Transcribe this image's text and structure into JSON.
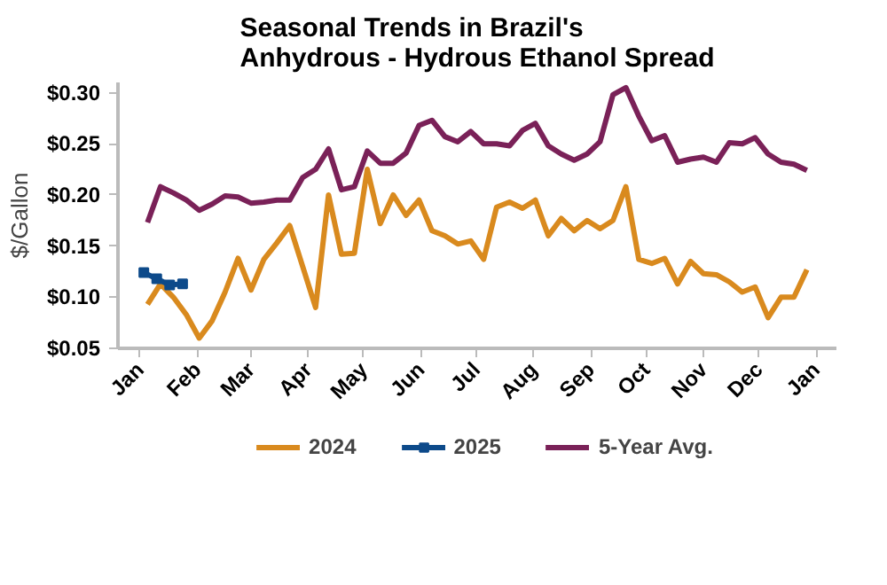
{
  "chart_data": {
    "type": "line",
    "title": "Seasonal Trends in Brazil's\nAnhydrous - Hydrous Ethanol Spread",
    "ylabel": "$/Gallon",
    "x": [
      "2024-01-05",
      "2024-01-12",
      "2024-01-19",
      "2024-01-26",
      "2024-02-02",
      "2024-02-09",
      "2024-02-16",
      "2024-02-23",
      "2024-03-01",
      "2024-03-08",
      "2024-03-15",
      "2024-03-22",
      "2024-03-29",
      "2024-04-05",
      "2024-04-12",
      "2024-04-19",
      "2024-04-26",
      "2024-05-03",
      "2024-05-10",
      "2024-05-17",
      "2024-05-24",
      "2024-05-31",
      "2024-06-07",
      "2024-06-14",
      "2024-06-21",
      "2024-06-28",
      "2024-07-05",
      "2024-07-12",
      "2024-07-19",
      "2024-07-26",
      "2024-08-02",
      "2024-08-09",
      "2024-08-16",
      "2024-08-23",
      "2024-08-30",
      "2024-09-06",
      "2024-09-13",
      "2024-09-20",
      "2024-09-27",
      "2024-10-04",
      "2024-10-11",
      "2024-10-18",
      "2024-10-25",
      "2024-11-01",
      "2024-11-08",
      "2024-11-15",
      "2024-11-22",
      "2024-11-29",
      "2024-12-06",
      "2024-12-13",
      "2024-12-20",
      "2024-12-27"
    ],
    "series": [
      {
        "name": "2024",
        "color": "#d98a1e",
        "values": [
          0.093,
          0.113,
          0.1,
          0.083,
          0.06,
          0.077,
          0.105,
          0.138,
          0.107,
          0.137,
          0.153,
          0.17,
          0.13,
          0.09,
          0.2,
          0.142,
          0.143,
          0.225,
          0.172,
          0.2,
          0.18,
          0.195,
          0.165,
          0.16,
          0.152,
          0.155,
          0.137,
          0.188,
          0.193,
          0.187,
          0.195,
          0.16,
          0.177,
          0.165,
          0.175,
          0.167,
          0.175,
          0.208,
          0.137,
          0.133,
          0.138,
          0.113,
          0.135,
          0.123,
          0.122,
          0.115,
          0.105,
          0.11,
          0.08,
          0.1,
          0.1,
          0.127
        ]
      },
      {
        "name": "2025",
        "color": "#0d4a8a",
        "marker": "square",
        "x": [
          "2024-01-03",
          "2024-01-10",
          "2024-01-17",
          "2024-01-24"
        ],
        "values": [
          0.124,
          0.118,
          0.112,
          0.113
        ]
      },
      {
        "name": "5-Year Avg.",
        "color": "#7a2158",
        "values": [
          0.173,
          0.208,
          0.202,
          0.195,
          0.185,
          0.191,
          0.199,
          0.198,
          0.192,
          0.193,
          0.195,
          0.195,
          0.217,
          0.225,
          0.245,
          0.205,
          0.208,
          0.243,
          0.231,
          0.231,
          0.241,
          0.268,
          0.273,
          0.257,
          0.252,
          0.262,
          0.25,
          0.25,
          0.248,
          0.263,
          0.27,
          0.248,
          0.24,
          0.234,
          0.24,
          0.252,
          0.298,
          0.305,
          0.277,
          0.253,
          0.258,
          0.232,
          0.235,
          0.237,
          0.232,
          0.251,
          0.25,
          0.256,
          0.24,
          0.232,
          0.23,
          0.224
        ]
      }
    ],
    "xlim": [
      "2023-12-20",
      "2025-01-12"
    ],
    "xticks": [
      {
        "value": "2024-01-01",
        "label": "Jan"
      },
      {
        "value": "2024-02-01",
        "label": "Feb"
      },
      {
        "value": "2024-03-01",
        "label": "Mar"
      },
      {
        "value": "2024-04-01",
        "label": "Apr"
      },
      {
        "value": "2024-05-01",
        "label": "May"
      },
      {
        "value": "2024-06-01",
        "label": "Jun"
      },
      {
        "value": "2024-07-01",
        "label": "Jul"
      },
      {
        "value": "2024-08-01",
        "label": "Aug"
      },
      {
        "value": "2024-09-01",
        "label": "Sep"
      },
      {
        "value": "2024-10-01",
        "label": "Oct"
      },
      {
        "value": "2024-11-01",
        "label": "Nov"
      },
      {
        "value": "2024-12-01",
        "label": "Dec"
      },
      {
        "value": "2025-01-01",
        "label": "Jan"
      }
    ],
    "ylim": [
      0.05,
      0.31
    ],
    "yticks": [
      {
        "value": 0.05,
        "label": "$0.05"
      },
      {
        "value": 0.1,
        "label": "$0.10"
      },
      {
        "value": 0.15,
        "label": "$0.15"
      },
      {
        "value": 0.2,
        "label": "$0.20"
      },
      {
        "value": 0.25,
        "label": "$0.25"
      },
      {
        "value": 0.3,
        "label": "$0.30"
      }
    ],
    "grid": false,
    "legend": "bottom",
    "line_style": "solid"
  }
}
